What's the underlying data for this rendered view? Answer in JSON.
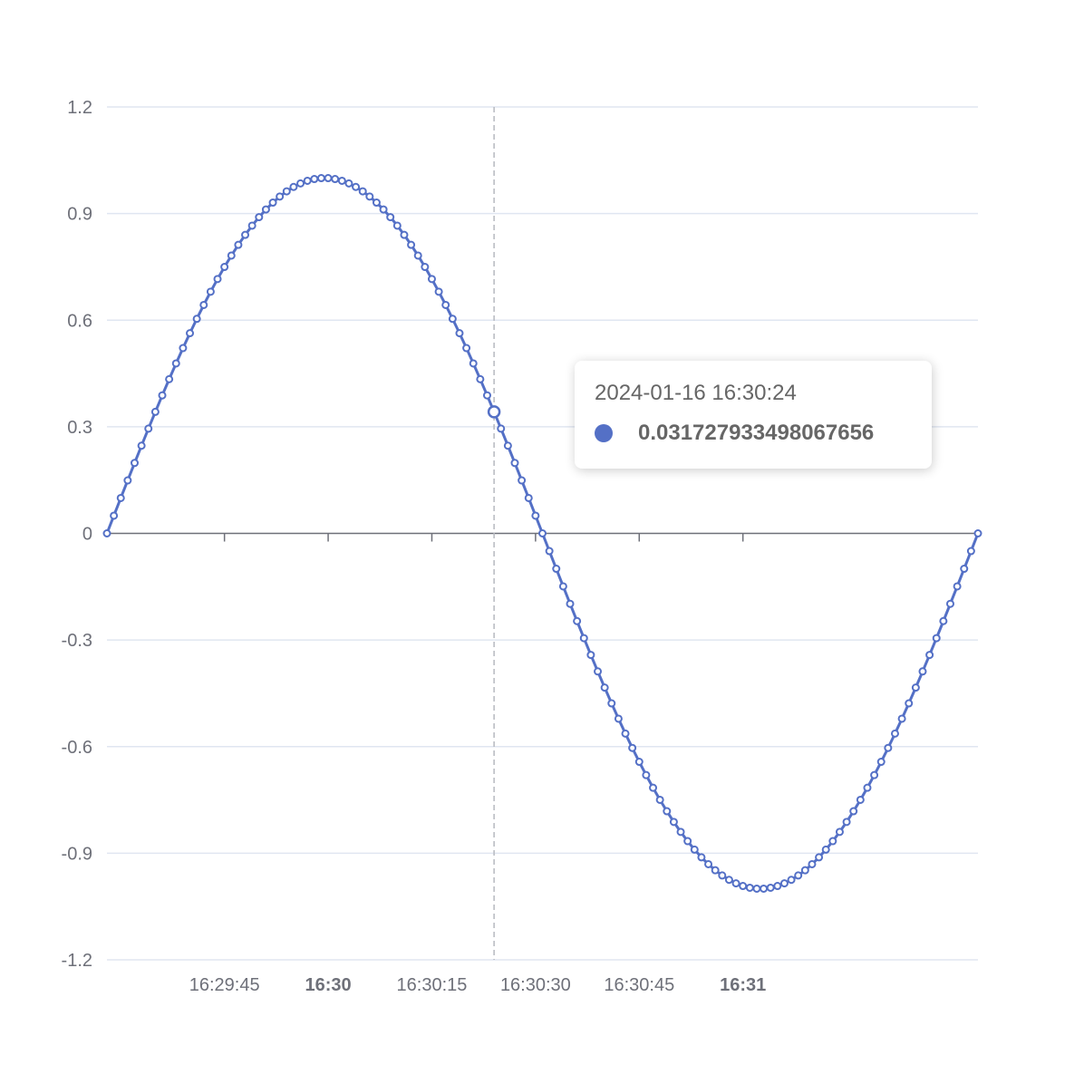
{
  "chart_data": {
    "type": "line",
    "x_start": "2024-01-16 16:29:28",
    "x_end": "2024-01-16 16:31:34",
    "x_tick_labels": [
      {
        "label": "16:29:45",
        "major": false
      },
      {
        "label": "16:30",
        "major": true
      },
      {
        "label": "16:30:15",
        "major": false
      },
      {
        "label": "16:30:30",
        "major": false
      },
      {
        "label": "16:30:45",
        "major": false
      },
      {
        "label": "16:31",
        "major": true
      }
    ],
    "y_tick_labels": [
      "1.2",
      "0.9",
      "0.6",
      "0.3",
      "0",
      "-0.3",
      "-0.6",
      "-0.9",
      "-1.2"
    ],
    "ylim": [
      -1.2,
      1.2
    ],
    "grid": true,
    "series": [
      {
        "function": "sin",
        "period_seconds": 126,
        "interval_seconds": 1,
        "color": "#5470c6",
        "marker": "hollow-circle"
      }
    ],
    "axis_pointer": {
      "type": "line",
      "style": "dashed",
      "x": "2024-01-16 16:30:24"
    }
  },
  "tooltip": {
    "title": "2024-01-16 16:30:24",
    "value": "0.031727933498067656",
    "marker_color": "#5470c6"
  }
}
